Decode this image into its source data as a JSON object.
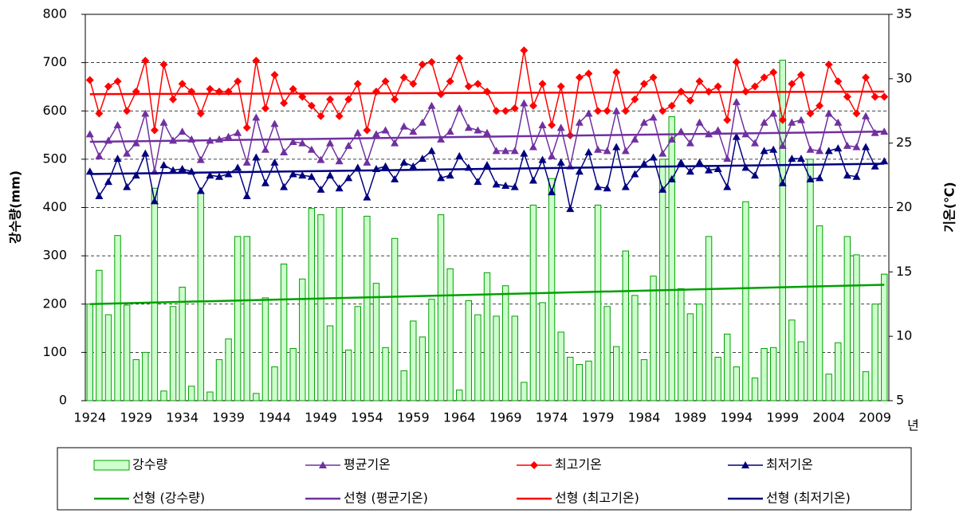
{
  "chart_data": {
    "type": "bar",
    "y_label": "강수량(mm)",
    "y2_label": "기온(℃)",
    "x_label": "년",
    "categories": [
      "1924",
      null,
      null,
      null,
      null,
      "1929",
      null,
      null,
      null,
      null,
      "1934",
      null,
      null,
      null,
      null,
      "1939",
      null,
      null,
      null,
      null,
      "1944",
      null,
      null,
      null,
      null,
      "1949",
      null,
      null,
      null,
      null,
      "1954",
      null,
      null,
      null,
      null,
      "1959",
      null,
      null,
      null,
      null,
      "1964",
      null,
      null,
      null,
      null,
      "1969",
      null,
      null,
      null,
      null,
      "1974",
      null,
      null,
      null,
      null,
      "1979",
      null,
      null,
      null,
      null,
      "1984",
      null,
      null,
      null,
      null,
      "1989",
      null,
      null,
      null,
      null,
      "1994",
      null,
      null,
      null,
      null,
      "1999",
      null,
      null,
      null,
      null,
      "2004",
      null,
      null,
      null,
      null,
      "2009",
      null
    ],
    "ylim": [
      0,
      800
    ],
    "yticks": [
      0,
      100,
      200,
      300,
      400,
      500,
      600,
      700,
      800
    ],
    "y2lim": [
      5,
      35
    ],
    "y2ticks": [
      5,
      10,
      15,
      20,
      25,
      30,
      35
    ],
    "grid": true,
    "legend": "bottom",
    "series": [
      {
        "name": "강수량",
        "type": "bar",
        "color": "#00a000",
        "fill": "#ccffcc",
        "values": [
          200,
          270,
          178,
          342,
          198,
          85,
          100,
          440,
          20,
          195,
          235,
          30,
          430,
          18,
          85,
          128,
          340,
          340,
          15,
          213,
          70,
          283,
          108,
          252,
          398,
          385,
          155,
          400,
          105,
          195,
          382,
          243,
          110,
          336,
          62,
          165,
          132,
          210,
          385,
          273,
          22,
          207,
          178,
          265,
          175,
          238,
          175,
          38,
          405,
          203,
          460,
          142,
          90,
          75,
          82,
          405,
          195,
          112,
          310,
          218,
          85,
          258,
          500,
          588,
          232,
          180,
          200,
          340,
          90,
          138,
          70,
          412,
          47,
          108,
          110,
          705,
          167,
          122,
          500,
          362,
          55,
          120,
          340,
          302,
          60,
          200,
          262
        ]
      },
      {
        "name": "평균기온",
        "type": "line",
        "axis": "y2",
        "marker": "triangle",
        "color": "#7030a0",
        "values": [
          25.7,
          24.0,
          25.2,
          26.4,
          24.2,
          25.0,
          27.3,
          22.8,
          26.6,
          25.2,
          25.9,
          25.3,
          23.7,
          25.2,
          25.3,
          25.5,
          25.8,
          23.5,
          27.0,
          24.5,
          26.5,
          24.3,
          25.1,
          25.0,
          24.5,
          23.7,
          25.0,
          23.6,
          24.8,
          25.8,
          23.5,
          25.7,
          26.0,
          25.0,
          26.3,
          25.9,
          26.6,
          27.9,
          25.3,
          25.9,
          27.7,
          26.2,
          26.0,
          25.8,
          24.4,
          24.4,
          24.4,
          28.1,
          24.7,
          26.4,
          24.0,
          26.2,
          23.2,
          26.6,
          27.3,
          24.5,
          24.4,
          27.5,
          24.4,
          25.3,
          26.6,
          27.0,
          24.2,
          25.3,
          25.9,
          25.0,
          26.6,
          25.7,
          26.0,
          23.8,
          28.2,
          25.7,
          25.0,
          26.6,
          27.3,
          24.8,
          26.6,
          26.8,
          24.5,
          24.4,
          27.3,
          26.6,
          24.8,
          24.7,
          27.1,
          25.8,
          25.9
        ]
      },
      {
        "name": "최고기온",
        "type": "line",
        "axis": "y2",
        "marker": "diamond",
        "color": "#ff0000",
        "values": [
          29.9,
          27.3,
          29.4,
          29.8,
          27.5,
          29.0,
          31.4,
          26.0,
          31.1,
          28.4,
          29.6,
          29.0,
          27.3,
          29.2,
          29.0,
          29.0,
          29.8,
          26.2,
          31.4,
          27.7,
          30.3,
          28.1,
          29.2,
          28.6,
          27.9,
          27.1,
          28.4,
          27.1,
          28.4,
          29.6,
          26.0,
          29.0,
          29.8,
          28.4,
          30.1,
          29.6,
          31.1,
          31.3,
          28.8,
          29.8,
          31.6,
          29.4,
          29.6,
          29.0,
          27.5,
          27.5,
          27.7,
          32.2,
          27.9,
          29.6,
          26.4,
          29.4,
          25.6,
          30.1,
          30.4,
          27.5,
          27.5,
          30.5,
          27.5,
          28.4,
          29.6,
          30.1,
          27.5,
          27.9,
          29.0,
          28.3,
          29.8,
          29.0,
          29.4,
          26.8,
          31.3,
          29.0,
          29.4,
          30.1,
          30.5,
          26.8,
          29.6,
          30.3,
          27.3,
          27.9,
          31.1,
          29.8,
          28.6,
          27.3,
          30.1,
          28.6,
          28.6
        ]
      },
      {
        "name": "최저기온",
        "type": "line",
        "axis": "y2",
        "marker": "triangle",
        "color": "#00007f",
        "values": [
          22.8,
          20.9,
          22.0,
          23.8,
          21.6,
          22.5,
          24.2,
          20.5,
          23.3,
          22.9,
          23.0,
          22.8,
          21.3,
          22.5,
          22.4,
          22.6,
          23.1,
          20.9,
          23.9,
          21.9,
          23.5,
          21.6,
          22.6,
          22.5,
          22.4,
          21.4,
          22.5,
          21.5,
          22.3,
          23.1,
          20.8,
          23.0,
          23.2,
          22.2,
          23.5,
          23.2,
          23.8,
          24.4,
          22.3,
          22.5,
          24.0,
          23.1,
          22.0,
          23.3,
          21.8,
          21.7,
          21.6,
          24.2,
          22.1,
          23.7,
          21.2,
          23.5,
          19.9,
          22.8,
          24.3,
          21.6,
          21.5,
          24.7,
          21.6,
          22.6,
          23.4,
          23.9,
          21.4,
          22.2,
          23.5,
          22.8,
          23.5,
          22.9,
          23.0,
          21.6,
          25.5,
          23.1,
          22.5,
          24.4,
          24.5,
          21.9,
          23.8,
          23.8,
          22.2,
          22.3,
          24.4,
          24.6,
          22.5,
          22.4,
          24.7,
          23.2,
          23.6
        ]
      }
    ],
    "trendlines": [
      {
        "name": "선형 (강수량)",
        "color": "#00a000",
        "values": [
          200,
          240
        ]
      },
      {
        "name": "선형 (평균기온)",
        "color": "#7030a0",
        "axis": "y2",
        "values": [
          25.1,
          25.9
        ]
      },
      {
        "name": "선형 (최고기온)",
        "color": "#ff0000",
        "axis": "y2",
        "values": [
          28.8,
          29.0
        ]
      },
      {
        "name": "선형 (최저기온)",
        "color": "#00007f",
        "axis": "y2",
        "values": [
          22.6,
          23.4
        ]
      }
    ]
  }
}
